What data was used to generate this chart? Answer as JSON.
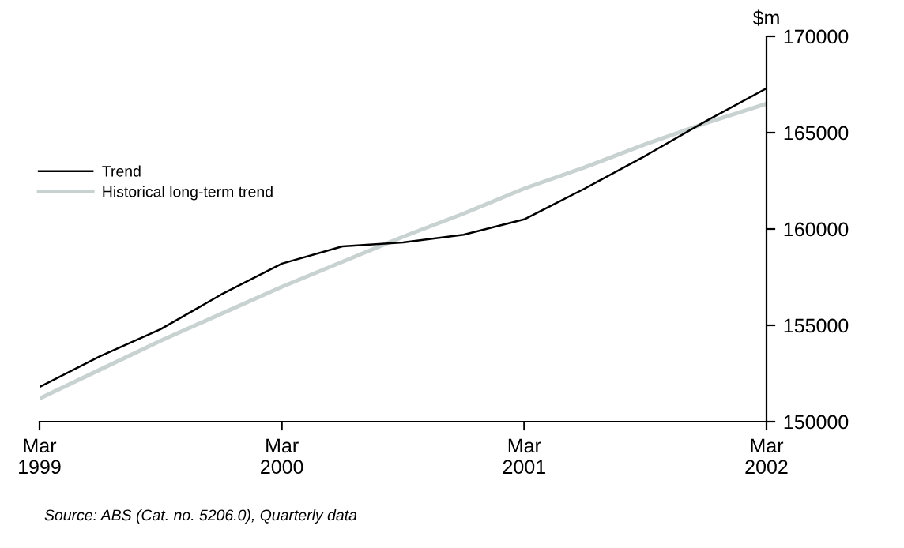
{
  "chart_data": {
    "type": "line",
    "ylabel": "$m",
    "categories": [
      "Mar\n1999",
      null,
      null,
      null,
      "Mar\n2000",
      null,
      null,
      null,
      "Mar\n2001",
      null,
      null,
      null,
      "Mar\n2002"
    ],
    "series": [
      {
        "name": "Trend",
        "color": "#000000",
        "values": [
          151800,
          153400,
          154800,
          156600,
          158200,
          159100,
          159300,
          159700,
          160500,
          162100,
          163800,
          165600,
          167300
        ]
      },
      {
        "name": "Historical long-term trend",
        "color": "#c8d2d0",
        "values": [
          151200,
          152700,
          154200,
          155600,
          157000,
          158300,
          159600,
          160800,
          162100,
          163200,
          164400,
          165500,
          166500
        ]
      }
    ],
    "ylim": [
      150000,
      170000
    ],
    "yticks": [
      150000,
      155000,
      160000,
      165000,
      170000
    ],
    "grid": false,
    "legend": "left",
    "marker": "none",
    "line_style": "solid",
    "annotations": [
      "Source: ABS (Cat. no. 5206.0), Quarterly data"
    ]
  }
}
